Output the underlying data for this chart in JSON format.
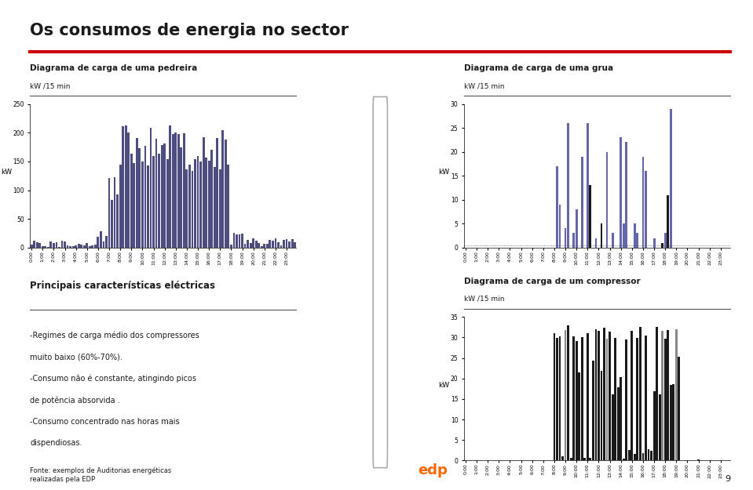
{
  "title": "Os consumos de energia no sector",
  "title_color": "#1a1a1a",
  "red_line_color": "#cc0000",
  "background_color": "#ffffff",
  "chart1_title": "Diagrama de carga de uma pedreira",
  "chart1_subtitle": "kW /15 min",
  "chart1_ylabel": "kW",
  "chart1_ylim": [
    0,
    250
  ],
  "chart1_yticks": [
    0,
    50,
    100,
    150,
    200,
    250
  ],
  "chart1_bar_color": "#4d4d7f",
  "chart2_title": "Diagrama de carga de uma grua",
  "chart2_subtitle": "kW /15 min",
  "chart2_ylabel": "kW",
  "chart2_ylim": [
    0,
    30
  ],
  "chart2_yticks": [
    0,
    5,
    10,
    15,
    20,
    25,
    30
  ],
  "chart2_bar_color": "#6666aa",
  "chart2_bar_color2": "#1a1a1a",
  "chart3_title": "Diagrama de carga de um compressor",
  "chart3_subtitle": "kW /15 min",
  "chart3_ylabel": "kW",
  "chart3_ylim": [
    0,
    35
  ],
  "chart3_yticks": [
    0,
    5,
    10,
    15,
    20,
    25,
    30,
    35
  ],
  "chart3_bar_color": "#1a1a1a",
  "chart3_bar_color2": "#888888",
  "text_block_title": "Principais características eléctricas",
  "text_block_lines": [
    "-Regimes de carga médio dos compressores",
    "muito baixo (60%-70%).",
    "-Consumo não é constante, atingindo picos",
    "de potência absorvida .",
    "-Consumo concentrado nas horas mais",
    "dispendiosas."
  ],
  "footer_text": "Fonte: exemplos de Auditorias energéticas\nrealizadas pela EDP",
  "page_number": "9",
  "time_labels": [
    "0:00",
    "1:00",
    "2:00",
    "3:00",
    "4:00",
    "5:00",
    "6:00",
    "7:00",
    "8:00",
    "9:00",
    "10:00",
    "11:00",
    "12:00",
    "13:00",
    "14:00",
    "15:00",
    "16:00",
    "17:00",
    "18:00",
    "19:00",
    "20:00",
    "21:00",
    "22:00",
    "23:00"
  ]
}
